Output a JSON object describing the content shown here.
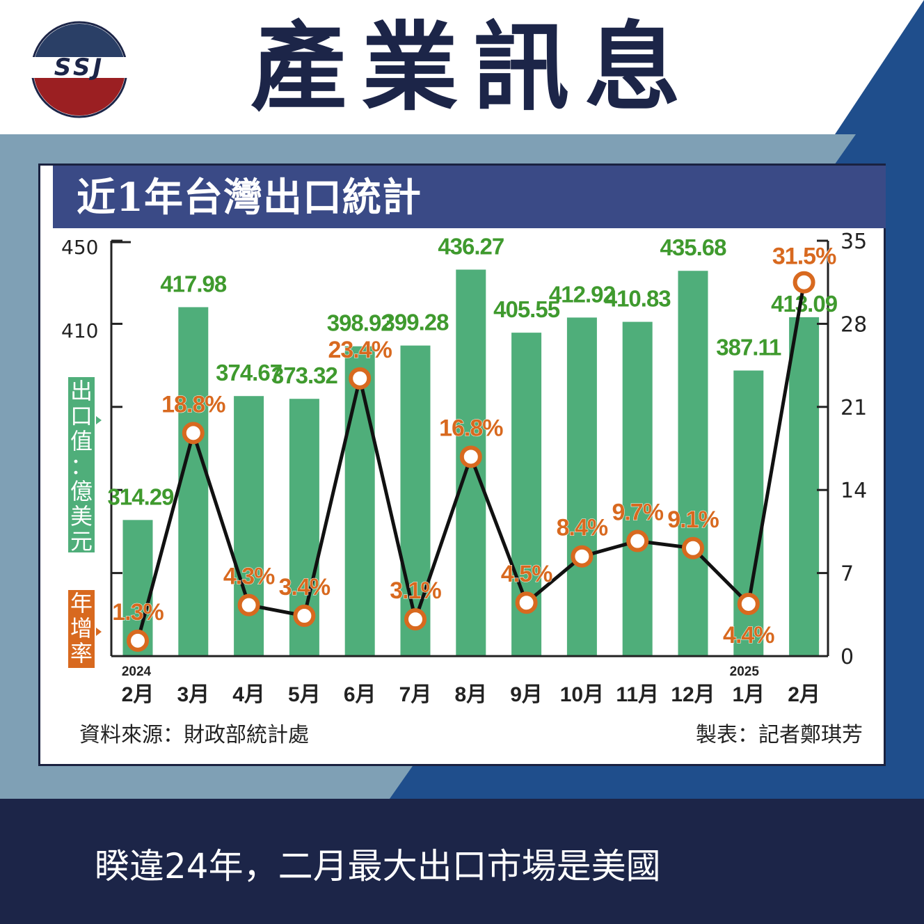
{
  "header": {
    "title": "產業訊息",
    "logo_text": "SSJ"
  },
  "footer": {
    "text": "睽違24年，二月最大出口市場是美國"
  },
  "colors": {
    "navy": "#1c2548",
    "steel": "#7fa0b5",
    "blue": "#1f4e8c",
    "bar": "#4fae7a",
    "bar_label": "#3f9a2e",
    "rate": "#d8691f",
    "header": "#3a4a86"
  },
  "chart_data": {
    "type": "bar+line",
    "title": "近1年台灣出口統計",
    "categories": [
      "2月",
      "3月",
      "4月",
      "5月",
      "6月",
      "7月",
      "8月",
      "9月",
      "10月",
      "11月",
      "12月",
      "1月",
      "2月"
    ],
    "year_marks": [
      {
        "index": 0,
        "label": "2024"
      },
      {
        "index": 11,
        "label": "2025"
      }
    ],
    "series": [
      {
        "name": "出口值：億美元",
        "type": "bar",
        "axis": "left",
        "values": [
          314.29,
          417.98,
          374.67,
          373.32,
          398.92,
          399.28,
          436.27,
          405.55,
          412.92,
          410.83,
          435.68,
          387.11,
          413.09
        ],
        "labels": [
          "314.29",
          "417.98",
          "374.67",
          "373.32",
          "398.92",
          "399.28",
          "436.27",
          "405.55",
          "412.92",
          "410.83",
          "435.68",
          "387.11",
          "413.09"
        ]
      },
      {
        "name": "年增率",
        "type": "line",
        "axis": "right",
        "values": [
          1.3,
          18.8,
          4.3,
          3.4,
          23.4,
          3.1,
          16.8,
          4.5,
          8.4,
          9.7,
          9.1,
          4.4,
          31.5
        ],
        "labels": [
          "1.3%",
          "18.8%",
          "4.3%",
          "3.4%",
          "23.4%",
          "3.1%",
          "16.8%",
          "4.5%",
          "8.4%",
          "9.7%",
          "9.1%",
          "4.4%",
          "31.5%"
        ]
      }
    ],
    "left_axis": {
      "ticks": [
        "450",
        "410"
      ],
      "label": "出口值：億美元"
    },
    "right_axis": {
      "ticks": [
        "35",
        "28",
        "21",
        "14",
        "7",
        "0"
      ],
      "unit": "%",
      "label": "年增率"
    },
    "source": "資料來源：財政部統計處",
    "credit": "製表：記者鄭琪芳"
  }
}
